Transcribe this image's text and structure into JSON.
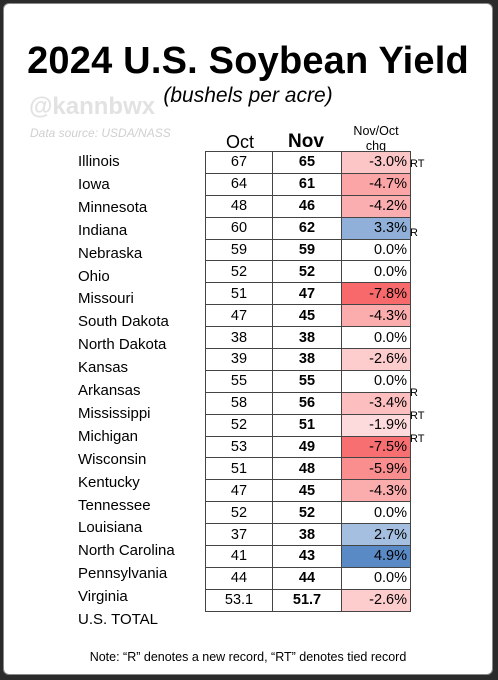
{
  "title": "2024 U.S. Soybean Yield",
  "subtitle": "(bushels per acre)",
  "handle": "@kannbwx",
  "source": "Data source: USDA/NASS",
  "headers": {
    "oct": "Oct",
    "nov": "Nov",
    "chg_line1": "Nov/Oct",
    "chg_line2": "chg"
  },
  "note": "Note: “R” denotes a new record, “RT” denotes tied record",
  "colors": {
    "negative_max": "#f8696b",
    "positive_max": "#5a8ac6",
    "neutral": "#ffffff"
  },
  "chart_data": {
    "type": "table",
    "columns": [
      "Oct",
      "Nov",
      "Nov/Oct chg"
    ],
    "rows": [
      {
        "state": "Illinois",
        "oct": "67",
        "nov": "65",
        "chg": -3.0,
        "chg_label": "-3.0%",
        "flag": "RT"
      },
      {
        "state": "Iowa",
        "oct": "64",
        "nov": "61",
        "chg": -4.7,
        "chg_label": "-4.7%",
        "flag": ""
      },
      {
        "state": "Minnesota",
        "oct": "48",
        "nov": "46",
        "chg": -4.2,
        "chg_label": "-4.2%",
        "flag": ""
      },
      {
        "state": "Indiana",
        "oct": "60",
        "nov": "62",
        "chg": 3.3,
        "chg_label": "3.3%",
        "flag": "R"
      },
      {
        "state": "Nebraska",
        "oct": "59",
        "nov": "59",
        "chg": 0.0,
        "chg_label": "0.0%",
        "flag": ""
      },
      {
        "state": "Ohio",
        "oct": "52",
        "nov": "52",
        "chg": 0.0,
        "chg_label": "0.0%",
        "flag": ""
      },
      {
        "state": "Missouri",
        "oct": "51",
        "nov": "47",
        "chg": -7.8,
        "chg_label": "-7.8%",
        "flag": ""
      },
      {
        "state": "South Dakota",
        "oct": "47",
        "nov": "45",
        "chg": -4.3,
        "chg_label": "-4.3%",
        "flag": ""
      },
      {
        "state": "North Dakota",
        "oct": "38",
        "nov": "38",
        "chg": 0.0,
        "chg_label": "0.0%",
        "flag": ""
      },
      {
        "state": "Kansas",
        "oct": "39",
        "nov": "38",
        "chg": -2.6,
        "chg_label": "-2.6%",
        "flag": ""
      },
      {
        "state": "Arkansas",
        "oct": "55",
        "nov": "55",
        "chg": 0.0,
        "chg_label": "0.0%",
        "flag": "R"
      },
      {
        "state": "Mississippi",
        "oct": "58",
        "nov": "56",
        "chg": -3.4,
        "chg_label": "-3.4%",
        "flag": "RT"
      },
      {
        "state": "Michigan",
        "oct": "52",
        "nov": "51",
        "chg": -1.9,
        "chg_label": "-1.9%",
        "flag": "RT"
      },
      {
        "state": "Wisconsin",
        "oct": "53",
        "nov": "49",
        "chg": -7.5,
        "chg_label": "-7.5%",
        "flag": ""
      },
      {
        "state": "Kentucky",
        "oct": "51",
        "nov": "48",
        "chg": -5.9,
        "chg_label": "-5.9%",
        "flag": ""
      },
      {
        "state": "Tennessee",
        "oct": "47",
        "nov": "45",
        "chg": -4.3,
        "chg_label": "-4.3%",
        "flag": ""
      },
      {
        "state": "Louisiana",
        "oct": "52",
        "nov": "52",
        "chg": 0.0,
        "chg_label": "0.0%",
        "flag": ""
      },
      {
        "state": "North Carolina",
        "oct": "37",
        "nov": "38",
        "chg": 2.7,
        "chg_label": "2.7%",
        "flag": ""
      },
      {
        "state": "Pennsylvania",
        "oct": "41",
        "nov": "43",
        "chg": 4.9,
        "chg_label": "4.9%",
        "flag": ""
      },
      {
        "state": "Virginia",
        "oct": "44",
        "nov": "44",
        "chg": 0.0,
        "chg_label": "0.0%",
        "flag": ""
      },
      {
        "state": "U.S. TOTAL",
        "oct": "53.1",
        "nov": "51.7",
        "chg": -2.6,
        "chg_label": "-2.6%",
        "flag": ""
      }
    ]
  }
}
